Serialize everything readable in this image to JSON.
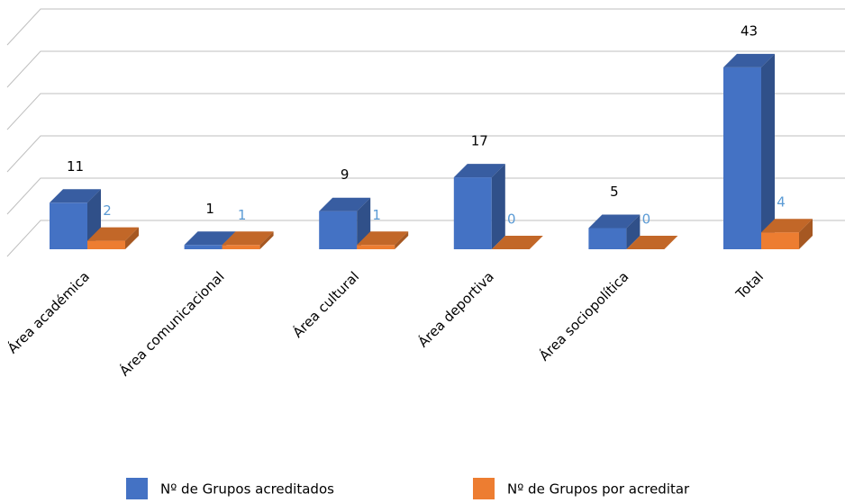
{
  "chart_data": {
    "type": "bar3d",
    "categories": [
      "Área académica",
      "Área comunicacional",
      "Área cultural",
      "Área deportiva",
      "Área sociopolítica",
      "Total"
    ],
    "series": [
      {
        "name": "Nº de Grupos acreditados",
        "color": "#4472c4",
        "values": [
          11,
          1,
          9,
          17,
          5,
          43
        ]
      },
      {
        "name": "Nº de Grupos por acreditar",
        "color": "#ed7d31",
        "values": [
          2,
          1,
          1,
          0,
          0,
          4
        ]
      }
    ],
    "ylim": [
      0,
      50
    ],
    "yticks": [
      0,
      10,
      20,
      30,
      40,
      50
    ],
    "grid": true,
    "legend": "bottom"
  }
}
